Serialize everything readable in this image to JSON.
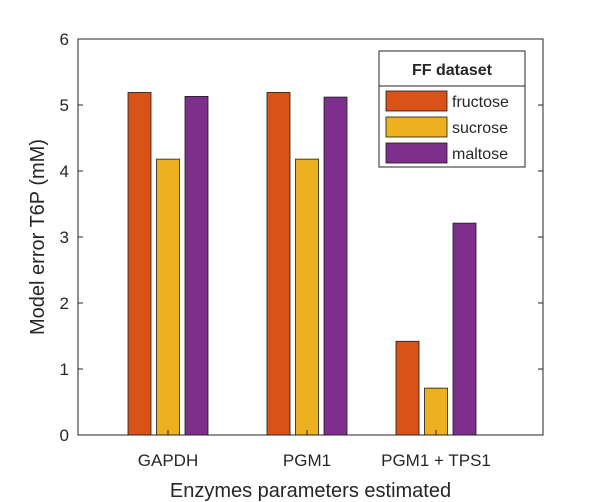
{
  "chart_data": {
    "type": "bar",
    "xlabel": "Enzymes parameters estimated",
    "ylabel": "Model error T6P (mM)",
    "categories": [
      "GAPDH",
      "PGM1",
      "PGM1 + TPS1"
    ],
    "ylim": [
      0,
      6
    ],
    "yticks": [
      "0",
      "1",
      "2",
      "3",
      "4",
      "5",
      "6"
    ],
    "grid": false,
    "legend": {
      "title": "FF dataset",
      "placement": "top-right"
    },
    "series": [
      {
        "name": "fructose",
        "color": "#D95319",
        "values": [
          5.19,
          5.19,
          1.42
        ]
      },
      {
        "name": "sucrose",
        "color": "#EDB120",
        "values": [
          4.18,
          4.18,
          0.71
        ]
      },
      {
        "name": "maltose",
        "color": "#7E2F8E",
        "values": [
          5.13,
          5.12,
          3.21
        ]
      }
    ]
  }
}
